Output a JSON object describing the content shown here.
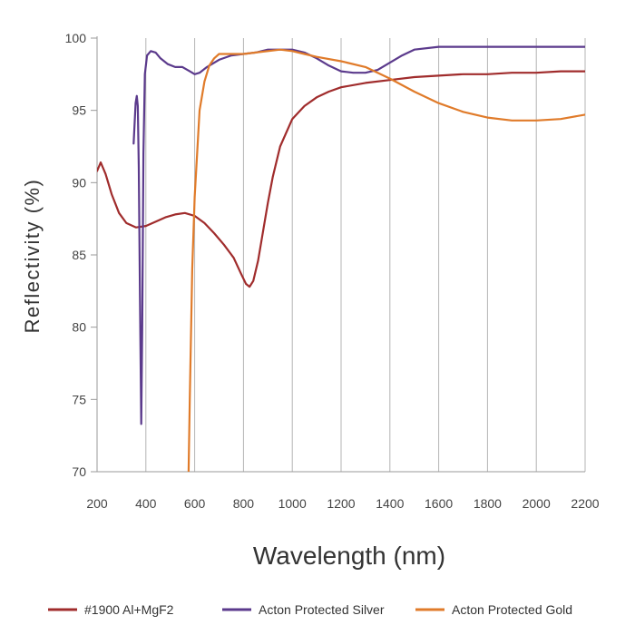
{
  "chart_data": {
    "type": "line",
    "title": "",
    "xlabel": "Wavelength (nm)",
    "ylabel": "Reflectivity (%)",
    "xlim": [
      200,
      2200
    ],
    "ylim": [
      70,
      100
    ],
    "x_ticks": [
      200,
      400,
      600,
      800,
      1000,
      1200,
      1400,
      1600,
      1800,
      2000,
      2200
    ],
    "y_ticks": [
      70,
      75,
      80,
      85,
      90,
      95,
      100
    ],
    "grid": "vertical",
    "legend_position": "bottom",
    "series": [
      {
        "name": "#1900 Al+MgF2",
        "color": "#a02c2c",
        "points": [
          [
            200,
            90.8
          ],
          [
            215,
            91.4
          ],
          [
            235,
            90.6
          ],
          [
            260,
            89.2
          ],
          [
            290,
            87.9
          ],
          [
            320,
            87.2
          ],
          [
            360,
            86.9
          ],
          [
            400,
            87.0
          ],
          [
            440,
            87.3
          ],
          [
            480,
            87.6
          ],
          [
            520,
            87.8
          ],
          [
            560,
            87.9
          ],
          [
            600,
            87.7
          ],
          [
            640,
            87.2
          ],
          [
            680,
            86.5
          ],
          [
            720,
            85.7
          ],
          [
            760,
            84.8
          ],
          [
            790,
            83.7
          ],
          [
            810,
            83.0
          ],
          [
            825,
            82.8
          ],
          [
            840,
            83.2
          ],
          [
            860,
            84.6
          ],
          [
            880,
            86.6
          ],
          [
            900,
            88.6
          ],
          [
            920,
            90.4
          ],
          [
            950,
            92.5
          ],
          [
            1000,
            94.4
          ],
          [
            1050,
            95.3
          ],
          [
            1100,
            95.9
          ],
          [
            1150,
            96.3
          ],
          [
            1200,
            96.6
          ],
          [
            1300,
            96.9
          ],
          [
            1400,
            97.1
          ],
          [
            1500,
            97.3
          ],
          [
            1600,
            97.4
          ],
          [
            1700,
            97.5
          ],
          [
            1800,
            97.5
          ],
          [
            1900,
            97.6
          ],
          [
            2000,
            97.6
          ],
          [
            2100,
            97.7
          ],
          [
            2200,
            97.7
          ]
        ]
      },
      {
        "name": "Acton Protected Silver",
        "color": "#5b3a8c",
        "points": [
          [
            350,
            92.7
          ],
          [
            358,
            95.5
          ],
          [
            363,
            96.0
          ],
          [
            367,
            95.3
          ],
          [
            371,
            91.0
          ],
          [
            376,
            82.0
          ],
          [
            381,
            73.3
          ],
          [
            385,
            80.0
          ],
          [
            390,
            92.0
          ],
          [
            396,
            97.5
          ],
          [
            405,
            98.8
          ],
          [
            420,
            99.1
          ],
          [
            440,
            99.0
          ],
          [
            460,
            98.6
          ],
          [
            490,
            98.2
          ],
          [
            520,
            98.0
          ],
          [
            550,
            98.0
          ],
          [
            580,
            97.7
          ],
          [
            600,
            97.5
          ],
          [
            620,
            97.6
          ],
          [
            650,
            98.0
          ],
          [
            700,
            98.5
          ],
          [
            750,
            98.8
          ],
          [
            800,
            98.9
          ],
          [
            850,
            99.0
          ],
          [
            900,
            99.2
          ],
          [
            1000,
            99.2
          ],
          [
            1050,
            99.0
          ],
          [
            1100,
            98.6
          ],
          [
            1150,
            98.1
          ],
          [
            1200,
            97.7
          ],
          [
            1250,
            97.6
          ],
          [
            1300,
            97.6
          ],
          [
            1350,
            97.8
          ],
          [
            1400,
            98.3
          ],
          [
            1450,
            98.8
          ],
          [
            1500,
            99.2
          ],
          [
            1600,
            99.4
          ],
          [
            1800,
            99.4
          ],
          [
            2000,
            99.4
          ],
          [
            2200,
            99.4
          ]
        ]
      },
      {
        "name": "Acton Protected Gold",
        "color": "#e07b2a",
        "points": [
          [
            575,
            70.0
          ],
          [
            580,
            75.0
          ],
          [
            590,
            84.0
          ],
          [
            600,
            89.0
          ],
          [
            620,
            95.0
          ],
          [
            640,
            97.0
          ],
          [
            660,
            98.1
          ],
          [
            680,
            98.6
          ],
          [
            700,
            98.9
          ],
          [
            750,
            98.9
          ],
          [
            800,
            98.9
          ],
          [
            850,
            99.0
          ],
          [
            900,
            99.1
          ],
          [
            950,
            99.2
          ],
          [
            1000,
            99.1
          ],
          [
            1050,
            98.9
          ],
          [
            1100,
            98.7
          ],
          [
            1200,
            98.4
          ],
          [
            1300,
            98.0
          ],
          [
            1400,
            97.2
          ],
          [
            1500,
            96.3
          ],
          [
            1600,
            95.5
          ],
          [
            1700,
            94.9
          ],
          [
            1800,
            94.5
          ],
          [
            1900,
            94.3
          ],
          [
            2000,
            94.3
          ],
          [
            2100,
            94.4
          ],
          [
            2200,
            94.7
          ]
        ]
      }
    ]
  }
}
